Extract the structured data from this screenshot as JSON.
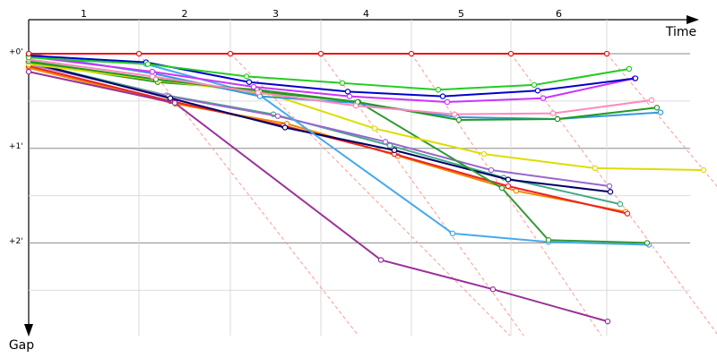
{
  "chart_data": {
    "type": "line",
    "x_label": "Time",
    "y_label": "Gap",
    "categories": [
      "1",
      "2",
      "3",
      "4",
      "5",
      "6"
    ],
    "xlim": [
      0,
      760
    ],
    "ylim": [
      -0.36,
      2.98
    ],
    "yticks": [
      {
        "value": 0,
        "label": "+0'"
      },
      {
        "value": 1,
        "label": "+1'"
      },
      {
        "value": 2,
        "label": "+2'"
      }
    ],
    "minor_yticks": [
      0.5,
      1.5,
      2.5
    ],
    "grid": true,
    "series": [
      {
        "color": "#ee1111",
        "x": [
          0,
          123,
          225,
          326,
          427,
          538,
          645
        ],
        "values": [
          0,
          0,
          0,
          0,
          0,
          0,
          0
        ]
      },
      {
        "color": "#22cc22",
        "x": [
          0,
          133,
          243,
          350,
          457,
          564,
          670
        ],
        "values": [
          0.04,
          0.11,
          0.24,
          0.31,
          0.38,
          0.33,
          0.16
        ]
      },
      {
        "color": "#0000cc",
        "x": [
          0,
          131,
          246,
          356,
          462,
          568,
          677
        ],
        "values": [
          0.02,
          0.09,
          0.3,
          0.4,
          0.45,
          0.39,
          0.26
        ]
      },
      {
        "color": "#cc33ff",
        "x": [
          0,
          138,
          251,
          358,
          467,
          574,
          676
        ],
        "values": [
          0.03,
          0.19,
          0.35,
          0.45,
          0.51,
          0.47,
          0.26
        ]
      },
      {
        "color": "#ff88bb",
        "x": [
          0,
          138,
          256,
          365,
          475,
          585,
          695
        ],
        "values": [
          0.06,
          0.24,
          0.41,
          0.55,
          0.64,
          0.63,
          0.49
        ]
      },
      {
        "color": "#229922",
        "x": [
          0,
          142,
          258,
          367,
          480,
          590,
          701
        ],
        "values": [
          0.08,
          0.27,
          0.4,
          0.51,
          0.7,
          0.69,
          0.57
        ]
      },
      {
        "color": "#3399dd",
        "x": [
          0,
          140,
          258,
          365,
          478,
          590,
          705
        ],
        "values": [
          0.0,
          0.21,
          0.45,
          0.52,
          0.67,
          0.69,
          0.62
        ]
      },
      {
        "color": "#dddd00",
        "x": [
          0,
          146,
          270,
          386,
          508,
          632,
          753
        ],
        "values": [
          0.11,
          0.28,
          0.43,
          0.79,
          1.06,
          1.21,
          1.23
        ]
      },
      {
        "color": "#993399",
        "x": [
          0,
          163,
          393,
          518,
          646
        ],
        "values": [
          0.19,
          0.52,
          2.18,
          2.49,
          2.83
        ]
      },
      {
        "color": "#339933",
        "x": [
          0,
          144,
          255,
          368,
          528,
          580,
          690
        ],
        "values": [
          0.09,
          0.3,
          0.38,
          0.51,
          1.42,
          1.97,
          2.0
        ]
      },
      {
        "color": "#44aaee",
        "x": [
          0,
          131,
          258,
          473,
          580,
          692
        ],
        "values": [
          0.02,
          0.11,
          0.44,
          1.9,
          1.99,
          2.02
        ]
      },
      {
        "color": "#000066",
        "x": [
          0,
          158,
          286,
          408,
          535,
          649
        ],
        "values": [
          0.09,
          0.47,
          0.78,
          1.02,
          1.33,
          1.46
        ]
      },
      {
        "color": "#9966cc",
        "x": [
          0,
          156,
          278,
          398,
          516,
          648
        ],
        "values": [
          0.11,
          0.45,
          0.66,
          0.93,
          1.23,
          1.4
        ]
      },
      {
        "color": "#ee2222",
        "x": [
          0,
          158,
          284,
          408,
          535,
          668
        ],
        "values": [
          0.13,
          0.5,
          0.76,
          1.06,
          1.4,
          1.69
        ]
      },
      {
        "color": "#ee8800",
        "x": [
          0,
          164,
          288,
          412,
          544,
          666
        ],
        "values": [
          0.15,
          0.53,
          0.74,
          1.08,
          1.45,
          1.67
        ]
      },
      {
        "color": "#44aa88",
        "x": [
          0,
          154,
          273,
          403,
          530,
          660
        ],
        "values": [
          0.09,
          0.44,
          0.64,
          0.97,
          1.31,
          1.59
        ]
      }
    ]
  }
}
